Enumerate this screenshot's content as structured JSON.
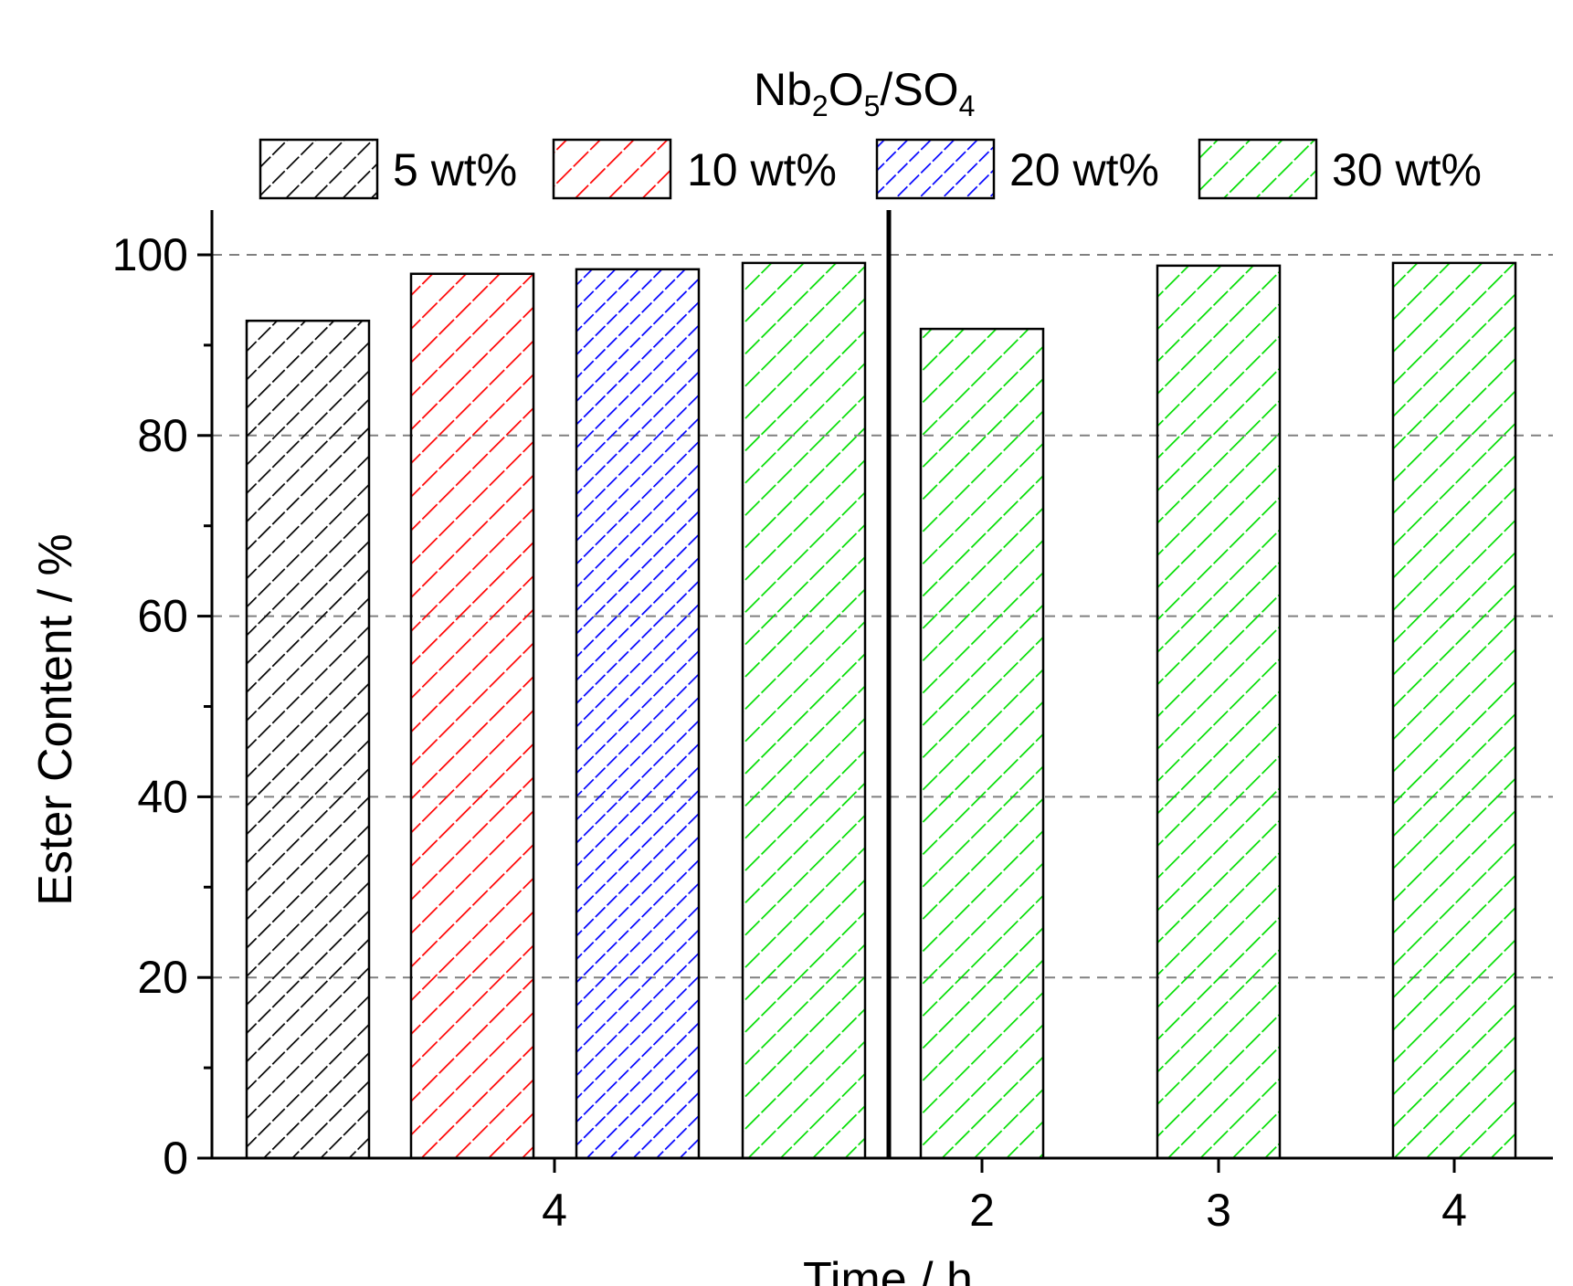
{
  "chart_data": {
    "type": "bar",
    "title": "",
    "legend_title": {
      "main": "Nb",
      "sub1": "2",
      "mid": "O",
      "sub2": "5",
      "sep": "/SO",
      "sub3": "4"
    },
    "xlabel": "Time / h",
    "ylabel": "Ester Content / %",
    "ylim": [
      0,
      105
    ],
    "yticks": [
      0,
      20,
      40,
      60,
      80,
      100
    ],
    "ytick_labels": [
      "0",
      "20",
      "40",
      "60",
      "80",
      "100"
    ],
    "grid": true,
    "legend_position": "top",
    "series": [
      {
        "name": "5 wt%",
        "color": "#000000"
      },
      {
        "name": "10 wt%",
        "color": "#ff0000"
      },
      {
        "name": "20 wt%",
        "color": "#0000ff"
      },
      {
        "name": "30 wt%",
        "color": "#00dd00"
      }
    ],
    "panels": [
      {
        "x_ticks": [
          "4"
        ],
        "bars": [
          {
            "x": "4",
            "series": "5 wt%",
            "value": 92.7
          },
          {
            "x": "4",
            "series": "10 wt%",
            "value": 97.9
          },
          {
            "x": "4",
            "series": "20 wt%",
            "value": 98.4
          },
          {
            "x": "4",
            "series": "30 wt%",
            "value": 99.1
          }
        ]
      },
      {
        "x_ticks": [
          "2",
          "3",
          "4"
        ],
        "bars": [
          {
            "x": "2",
            "series": "30 wt%",
            "value": 91.8
          },
          {
            "x": "3",
            "series": "30 wt%",
            "value": 98.8
          },
          {
            "x": "4",
            "series": "30 wt%",
            "value": 99.1
          }
        ]
      }
    ]
  }
}
